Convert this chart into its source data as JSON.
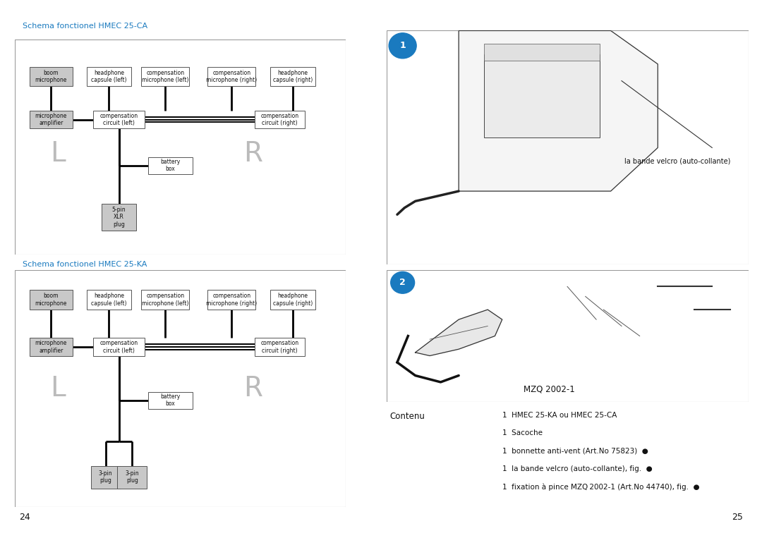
{
  "title_ca": "Schema fonctionel HMEC 25-CA",
  "title_ka": "Schema fonctionel HMEC 25-KA",
  "title_color": "#1a7abf",
  "bg_color": "#ffffff",
  "box_fill_gray": "#c8c8c8",
  "box_fill_white": "#ffffff",
  "box_edge": "#555555",
  "text_color_dark": "#111111",
  "text_color_LR": "#bbbbbb",
  "line_color": "#000000",
  "border_color": "#999999",
  "page_left": "24",
  "page_right": "25",
  "label_velcro": "la bande velcro (auto-collante)",
  "label_mqz": "MZQ 2002-1",
  "contenu_label": "Contenu",
  "contenu_lines": [
    "1  HMEC 25-KA ou HMEC 25-CA",
    "1  Sacoche",
    "1  bonnette anti-vent (Art.No 75823)  ●",
    "1  la bande velcro (auto-collante), fig.  ●",
    "1  fixation à pince MZQ 2002-1 (Art.No 44740), fig.  ●"
  ]
}
